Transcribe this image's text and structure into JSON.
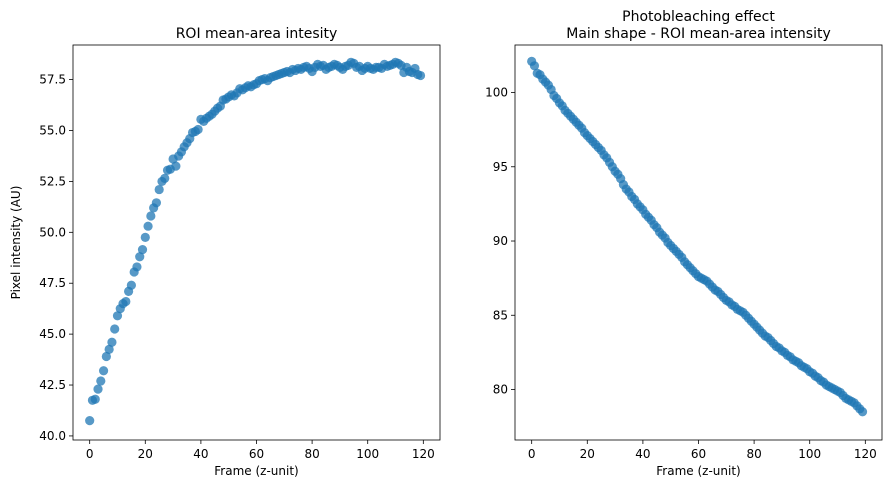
{
  "chart_data": [
    {
      "type": "scatter",
      "title": "ROI mean-area intesity",
      "xlabel": "Frame (z-unit)",
      "ylabel": "Pixel intensity (AU)",
      "xlim": [
        -6,
        126
      ],
      "ylim": [
        39.8,
        59.2
      ],
      "xticks": [
        0,
        20,
        40,
        60,
        80,
        100,
        120
      ],
      "yticks": [
        40.0,
        42.5,
        45.0,
        47.5,
        50.0,
        52.5,
        55.0,
        57.5
      ],
      "grid": false,
      "color": "#1f77b4",
      "series": [
        {
          "x": [
            0,
            1,
            2,
            3,
            4,
            5,
            6,
            7,
            8,
            9,
            10,
            11,
            12,
            13,
            14,
            15,
            16,
            17,
            18,
            19,
            20,
            21,
            22,
            23,
            24,
            25,
            26,
            27,
            28,
            29,
            30,
            31,
            32,
            33,
            34,
            35,
            36,
            37,
            38,
            39,
            40,
            41,
            42,
            43,
            44,
            45,
            46,
            47,
            48,
            49,
            50,
            51,
            52,
            53,
            54,
            55,
            56,
            57,
            58,
            59,
            60,
            61,
            62,
            63,
            64,
            65,
            66,
            67,
            68,
            69,
            70,
            71,
            72,
            73,
            74,
            75,
            76,
            77,
            78,
            79,
            80,
            81,
            82,
            83,
            84,
            85,
            86,
            87,
            88,
            89,
            90,
            91,
            92,
            93,
            94,
            95,
            96,
            97,
            98,
            99,
            100,
            101,
            102,
            103,
            104,
            105,
            106,
            107,
            108,
            109,
            110,
            111,
            112,
            113,
            114,
            115,
            116,
            117,
            118,
            119
          ],
          "y": [
            40.75,
            41.75,
            41.8,
            42.3,
            42.7,
            43.2,
            43.9,
            44.25,
            44.6,
            45.25,
            45.9,
            46.25,
            46.5,
            46.6,
            47.1,
            47.4,
            48.05,
            48.3,
            48.8,
            49.15,
            49.75,
            50.3,
            50.8,
            51.2,
            51.45,
            52.1,
            52.5,
            52.65,
            53.05,
            53.1,
            53.6,
            53.25,
            53.75,
            53.95,
            54.2,
            54.4,
            54.6,
            54.9,
            54.95,
            55.05,
            55.55,
            55.45,
            55.6,
            55.7,
            55.8,
            55.95,
            56.1,
            56.2,
            56.5,
            56.55,
            56.65,
            56.75,
            56.7,
            56.85,
            57.05,
            57.0,
            57.1,
            57.2,
            57.15,
            57.25,
            57.3,
            57.45,
            57.5,
            57.55,
            57.45,
            57.6,
            57.65,
            57.7,
            57.75,
            57.8,
            57.85,
            57.9,
            57.85,
            58.0,
            57.95,
            58.05,
            58.0,
            58.1,
            58.15,
            58.05,
            57.9,
            58.1,
            58.25,
            58.15,
            58.2,
            58.0,
            58.1,
            58.15,
            58.25,
            58.2,
            58.1,
            58.0,
            58.15,
            58.2,
            58.35,
            58.3,
            58.1,
            58.15,
            57.95,
            58.05,
            58.15,
            58.05,
            58.0,
            58.1,
            58.1,
            58.05,
            58.25,
            58.15,
            58.2,
            58.25,
            58.35,
            58.3,
            58.2,
            57.85,
            58.1,
            57.9,
            57.85,
            58.05,
            57.75,
            57.7
          ]
        }
      ]
    },
    {
      "type": "scatter",
      "title": "Photobleaching effect\nMain shape - ROI mean-area intensity",
      "xlabel": "Frame (z-unit)",
      "ylabel": "",
      "xlim": [
        -6,
        126
      ],
      "ylim": [
        76.6,
        103.2
      ],
      "xticks": [
        0,
        20,
        40,
        60,
        80,
        100,
        120
      ],
      "yticks": [
        80,
        85,
        90,
        95,
        100
      ],
      "grid": false,
      "color": "#1f77b4",
      "series": [
        {
          "x": [
            0,
            1,
            2,
            3,
            4,
            5,
            6,
            7,
            8,
            9,
            10,
            11,
            12,
            13,
            14,
            15,
            16,
            17,
            18,
            19,
            20,
            21,
            22,
            23,
            24,
            25,
            26,
            27,
            28,
            29,
            30,
            31,
            32,
            33,
            34,
            35,
            36,
            37,
            38,
            39,
            40,
            41,
            42,
            43,
            44,
            45,
            46,
            47,
            48,
            49,
            50,
            51,
            52,
            53,
            54,
            55,
            56,
            57,
            58,
            59,
            60,
            61,
            62,
            63,
            64,
            65,
            66,
            67,
            68,
            69,
            70,
            71,
            72,
            73,
            74,
            75,
            76,
            77,
            78,
            79,
            80,
            81,
            82,
            83,
            84,
            85,
            86,
            87,
            88,
            89,
            90,
            91,
            92,
            93,
            94,
            95,
            96,
            97,
            98,
            99,
            100,
            101,
            102,
            103,
            104,
            105,
            106,
            107,
            108,
            109,
            110,
            111,
            112,
            113,
            114,
            115,
            116,
            117,
            118,
            119
          ],
          "y": [
            102.1,
            101.8,
            101.3,
            101.2,
            100.9,
            100.7,
            100.5,
            100.2,
            99.8,
            99.6,
            99.3,
            99.1,
            98.8,
            98.6,
            98.4,
            98.2,
            98.0,
            97.8,
            97.6,
            97.3,
            97.1,
            96.9,
            96.7,
            96.5,
            96.3,
            96.1,
            95.8,
            95.6,
            95.3,
            95.0,
            94.7,
            94.5,
            94.2,
            93.8,
            93.5,
            93.3,
            93.0,
            92.8,
            92.5,
            92.3,
            92.1,
            91.8,
            91.6,
            91.4,
            91.1,
            90.9,
            90.6,
            90.4,
            90.2,
            89.9,
            89.7,
            89.5,
            89.3,
            89.1,
            88.9,
            88.6,
            88.4,
            88.2,
            88.0,
            87.8,
            87.6,
            87.5,
            87.4,
            87.3,
            87.1,
            86.9,
            86.7,
            86.6,
            86.4,
            86.2,
            86.0,
            85.9,
            85.7,
            85.6,
            85.4,
            85.3,
            85.2,
            85.0,
            84.8,
            84.6,
            84.4,
            84.2,
            84.0,
            83.8,
            83.6,
            83.5,
            83.3,
            83.1,
            82.9,
            82.8,
            82.6,
            82.5,
            82.3,
            82.2,
            82.0,
            81.9,
            81.8,
            81.6,
            81.5,
            81.4,
            81.2,
            81.1,
            80.9,
            80.8,
            80.6,
            80.5,
            80.3,
            80.2,
            80.1,
            80.0,
            79.9,
            79.8,
            79.6,
            79.4,
            79.3,
            79.2,
            79.1,
            78.9,
            78.7,
            78.5
          ]
        }
      ]
    }
  ]
}
